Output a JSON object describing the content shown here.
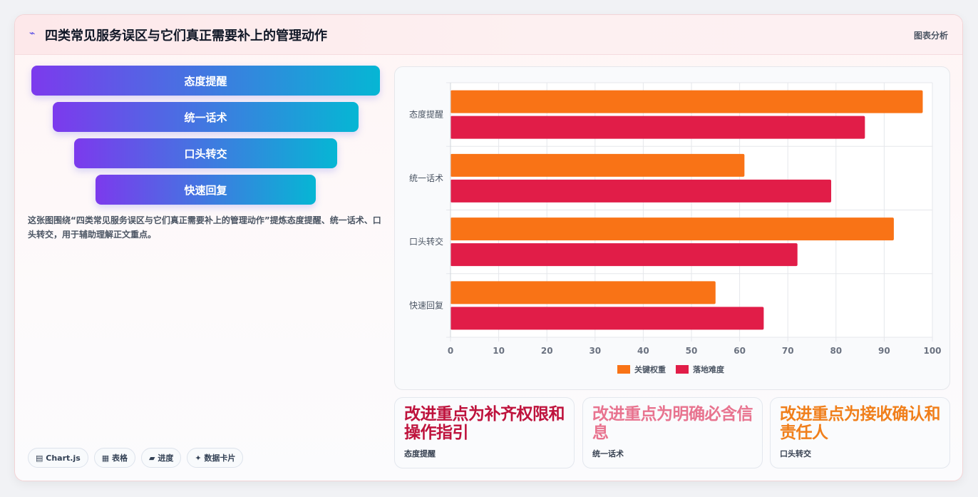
{
  "header": {
    "title": "四类常见服务误区与它们真正需要补上的管理动作",
    "right_label": "图表分析"
  },
  "funnel": [
    "态度提醒",
    "统一话术",
    "口头转交",
    "快速回复"
  ],
  "description": "这张图围绕“四类常见服务误区与它们真正需要补上的管理动作”提炼态度提醒、统一话术、口头转交，用于辅助理解正文重点。",
  "tags": [
    {
      "icon": "▤",
      "label": "Chart.js"
    },
    {
      "icon": "▦",
      "label": "表格"
    },
    {
      "icon": "▰",
      "label": "进度"
    },
    {
      "icon": "✦",
      "label": "数据卡片"
    }
  ],
  "chart_data": {
    "type": "bar",
    "orientation": "horizontal",
    "categories": [
      "态度提醒",
      "统一话术",
      "口头转交",
      "快速回复"
    ],
    "series": [
      {
        "name": "关键权重",
        "color": "#f97316",
        "values": [
          98,
          61,
          92,
          55
        ]
      },
      {
        "name": "落地难度",
        "color": "#e11d48",
        "values": [
          86,
          79,
          72,
          65
        ]
      }
    ],
    "xlim": [
      0,
      100
    ],
    "xticks": [
      0,
      10,
      20,
      30,
      40,
      50,
      60,
      70,
      80,
      90,
      100
    ],
    "grid": true,
    "legend_position": "bottom"
  },
  "kpis": [
    {
      "value": "改进重点为补齐权限和操作指引",
      "label": "态度提醒",
      "color": "#be123c"
    },
    {
      "value": "改进重点为明确必含信息",
      "label": "统一话术",
      "color": "#e8738f"
    },
    {
      "value": "改进重点为接收确认和责任人",
      "label": "口头转交",
      "color": "#f07f1b"
    }
  ]
}
